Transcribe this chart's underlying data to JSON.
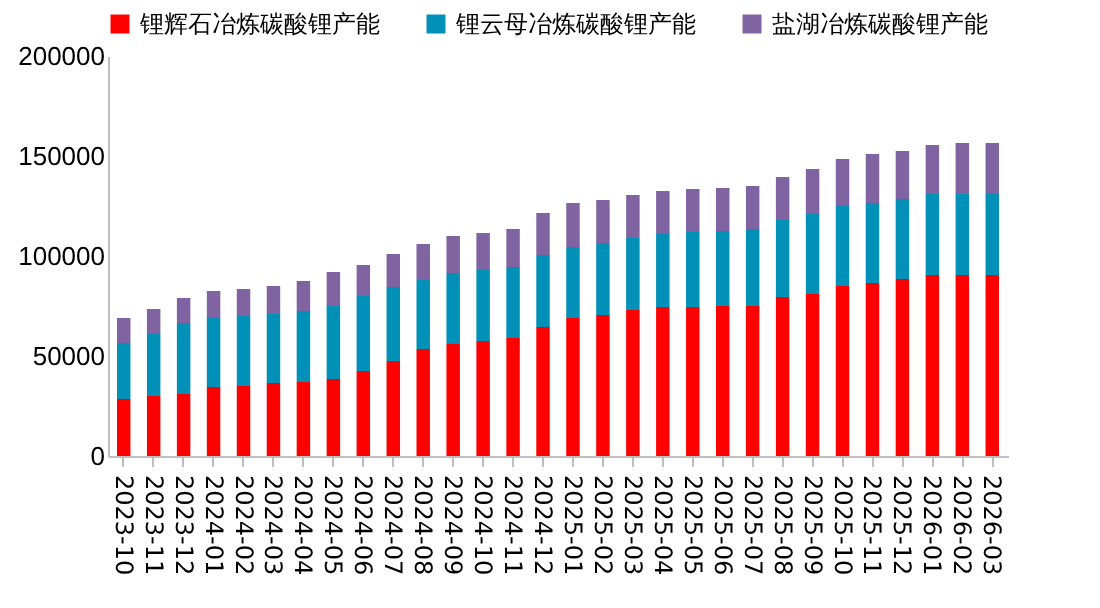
{
  "chart_data": {
    "type": "bar",
    "stacked": true,
    "categories": [
      "2023-10",
      "2023-11",
      "2023-12",
      "2024-01",
      "2024-02",
      "2024-03",
      "2024-04",
      "2024-05",
      "2024-06",
      "2024-07",
      "2024-08",
      "2024-09",
      "2024-10",
      "2024-11",
      "2024-12",
      "2025-01",
      "2025-02",
      "2025-03",
      "2025-04",
      "2025-05",
      "2025-06",
      "2025-07",
      "2025-08",
      "2025-09",
      "2025-10",
      "2025-11",
      "2025-12",
      "2026-01",
      "2026-02",
      "2026-03"
    ],
    "series": [
      {
        "name": "锂辉石冶炼碳酸锂产能",
        "color": "#ff0000",
        "values": [
          28500,
          30000,
          31000,
          34500,
          35000,
          36500,
          37000,
          38500,
          42500,
          47500,
          53500,
          56000,
          57500,
          59000,
          64500,
          69000,
          70500,
          73000,
          74500,
          74500,
          75000,
          75000,
          79500,
          81000,
          85000,
          86500,
          88500,
          90500,
          90500,
          90500
        ]
      },
      {
        "name": "锂云母冶炼碳酸锂产能",
        "color": "#0090b8",
        "values": [
          28000,
          31000,
          35500,
          34500,
          35000,
          34500,
          35500,
          36500,
          37500,
          37000,
          34500,
          35500,
          35500,
          35500,
          36000,
          35500,
          36000,
          36000,
          36500,
          37500,
          37500,
          38500,
          38500,
          40000,
          40000,
          40000,
          40000,
          40500,
          40500,
          40500
        ]
      },
      {
        "name": "盐湖冶炼碳酸锂产能",
        "color": "#8064a2",
        "values": [
          12500,
          12500,
          12500,
          13500,
          13500,
          14000,
          15000,
          17000,
          15500,
          16500,
          18000,
          18500,
          18500,
          19000,
          21000,
          22000,
          21500,
          21500,
          21500,
          21500,
          21500,
          21500,
          21500,
          22500,
          23500,
          24500,
          24000,
          24500,
          25500,
          25500
        ]
      }
    ],
    "ylim": [
      0,
      200000
    ],
    "yticks": [
      0,
      50000,
      100000,
      150000,
      200000
    ],
    "grid": false,
    "legend": "top"
  }
}
